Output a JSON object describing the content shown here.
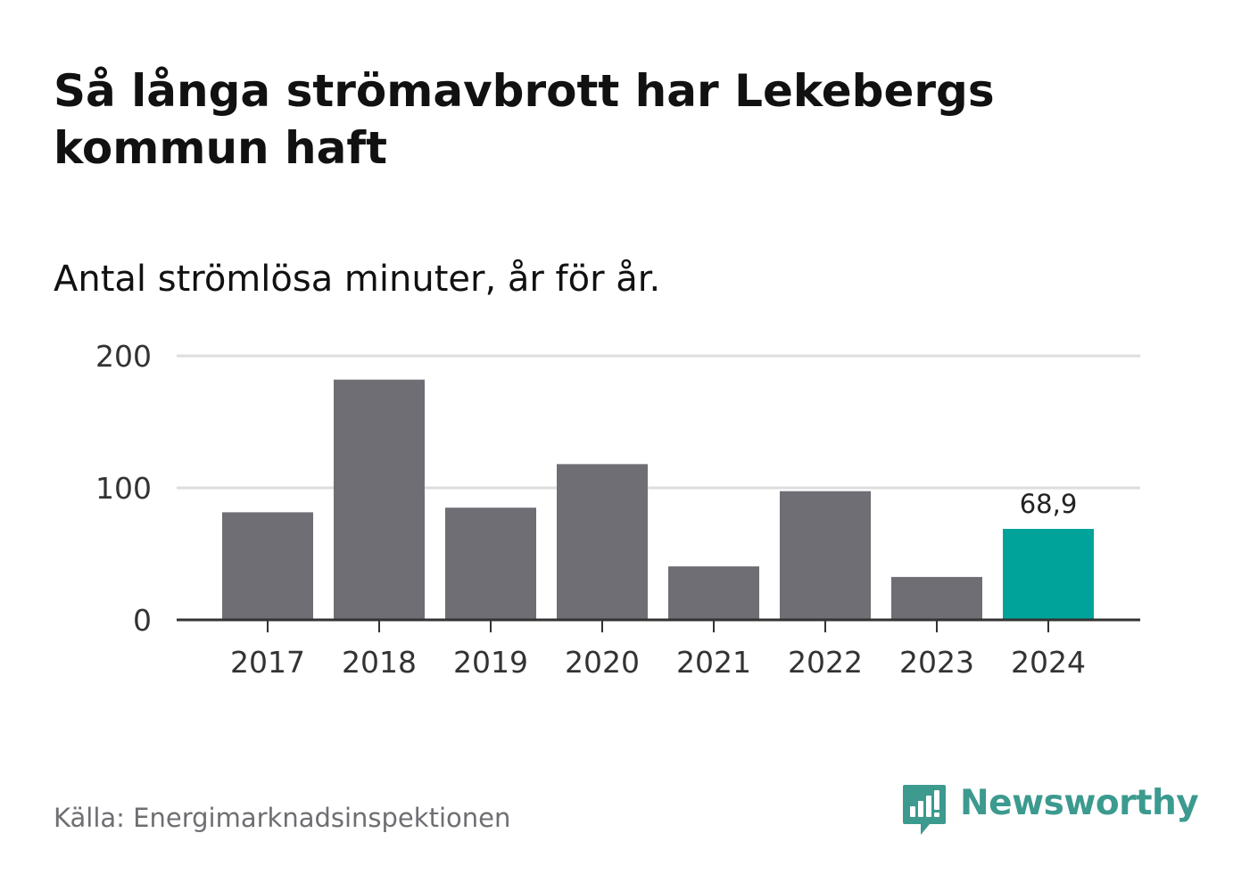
{
  "title": "Så långa strömavbrott har Lekebergs kommun haft",
  "subtitle": "Antal strömlösa minuter, år för år.",
  "source": "Källa: Energimarknadsinspektionen",
  "brand": {
    "name": "Newsworthy",
    "icon": "newsworthy-logo-icon",
    "color": "#3c9a8f"
  },
  "colors": {
    "bar": "#6f6e74",
    "highlight": "#00a39a",
    "grid": "#dddddd",
    "axis": "#333333"
  },
  "chart_data": {
    "type": "bar",
    "title": "Så långa strömavbrott har Lekebergs kommun haft",
    "subtitle": "Antal strömlösa minuter, år för år.",
    "xlabel": "",
    "ylabel": "",
    "categories": [
      "2017",
      "2018",
      "2019",
      "2020",
      "2021",
      "2022",
      "2023",
      "2024"
    ],
    "values": [
      81.5,
      182,
      85,
      118,
      40.5,
      97.5,
      32.5,
      68.9
    ],
    "highlight_index": 7,
    "highlight_label": "68,9",
    "ylim": [
      0,
      200
    ],
    "yticks": [
      0,
      100,
      200
    ],
    "grid": true,
    "legend": "none"
  }
}
